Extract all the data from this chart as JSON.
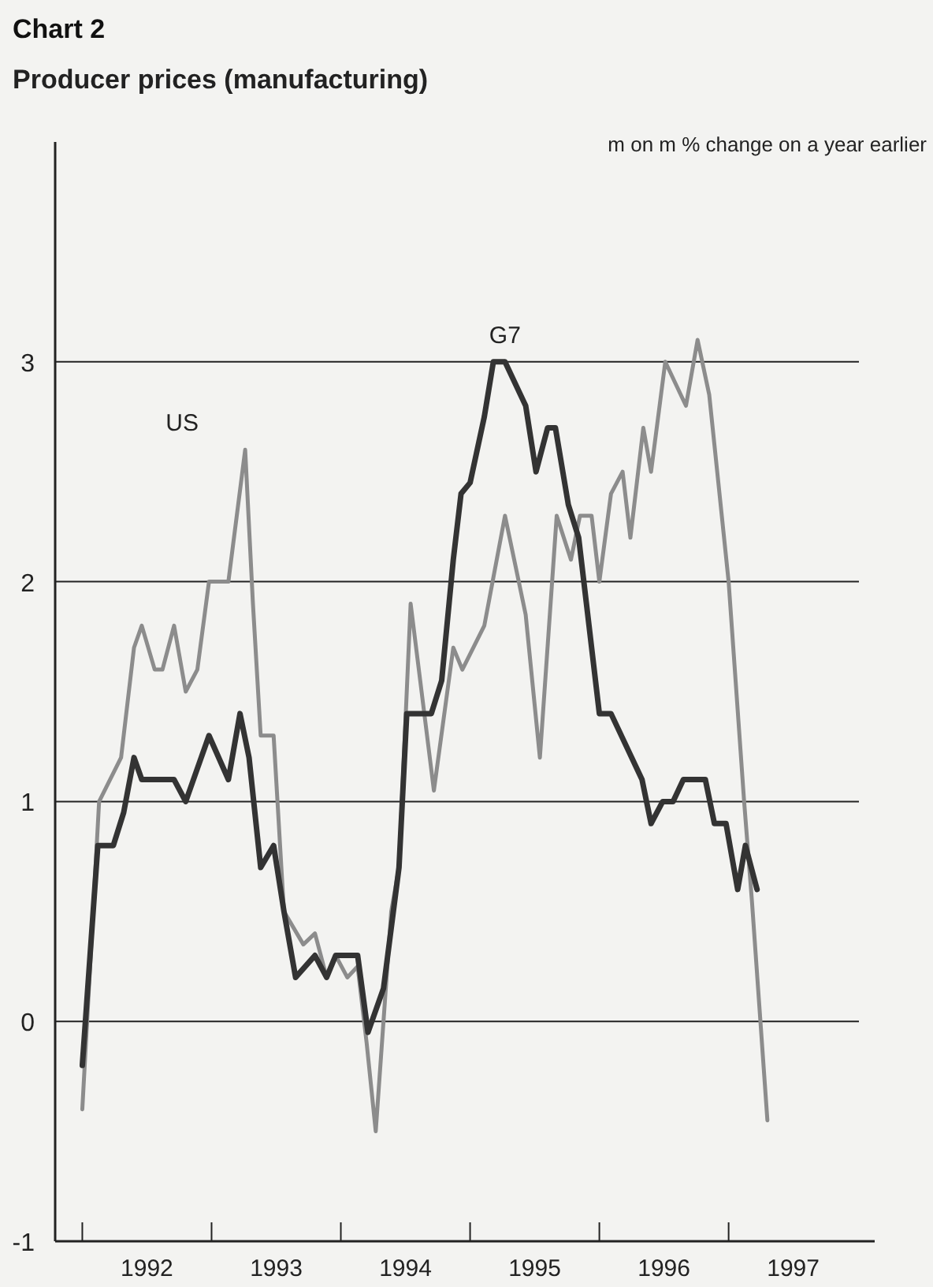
{
  "chart_data": {
    "type": "line",
    "title": "Chart 2",
    "subtitle": "Producer prices (manufacturing)",
    "ylabel": "m on m % change on a year earlier",
    "xlim": [
      1991.79,
      1998.13
    ],
    "xticks": [
      {
        "value": 1992,
        "label": null
      },
      {
        "value": 1993,
        "label": null
      },
      {
        "value": 1994,
        "label": null
      },
      {
        "value": 1995,
        "label": null
      },
      {
        "value": 1996,
        "label": null
      },
      {
        "value": 1997,
        "label": null
      },
      {
        "value": 1992.5,
        "label": "1992"
      },
      {
        "value": 1993.5,
        "label": "1993"
      },
      {
        "value": 1994.5,
        "label": "1994"
      },
      {
        "value": 1995.5,
        "label": "1995"
      },
      {
        "value": 1996.5,
        "label": "1996"
      },
      {
        "value": 1997.5,
        "label": "1997"
      }
    ],
    "ylim": [
      -1,
      4
    ],
    "yticks": [
      -1,
      0,
      1,
      2,
      3
    ],
    "grid": "y",
    "marker": "none",
    "line_style": "solid",
    "series": [
      {
        "name": "US",
        "color": "#8c8c8c",
        "x": [
          1992.0,
          1992.13,
          1992.3,
          1992.4,
          1992.46,
          1992.56,
          1992.62,
          1992.71,
          1992.8,
          1992.89,
          1992.98,
          1993.13,
          1993.26,
          1993.32,
          1993.38,
          1993.48,
          1993.56,
          1993.71,
          1993.8,
          1993.89,
          1993.96,
          1994.05,
          1994.13,
          1994.2,
          1994.27,
          1994.39,
          1994.45,
          1994.54,
          1994.72,
          1994.87,
          1994.94,
          1995.11,
          1995.27,
          1995.43,
          1995.54,
          1995.67,
          1995.78,
          1995.85,
          1995.94,
          1996.0,
          1996.09,
          1996.18,
          1996.24,
          1996.34,
          1996.4,
          1996.51,
          1996.67,
          1996.76,
          1996.85,
          1997.0,
          1997.12,
          1997.18,
          1997.3
        ],
        "values": [
          -0.4,
          1.0,
          1.2,
          1.7,
          1.8,
          1.6,
          1.6,
          1.8,
          1.5,
          1.6,
          2.0,
          2.0,
          2.6,
          1.9,
          1.3,
          1.3,
          0.5,
          0.35,
          0.4,
          0.2,
          0.3,
          0.2,
          0.25,
          -0.1,
          -0.5,
          0.5,
          0.7,
          1.9,
          1.05,
          1.7,
          1.6,
          1.8,
          2.3,
          1.85,
          1.2,
          2.3,
          2.1,
          2.3,
          2.3,
          2.0,
          2.4,
          2.5,
          2.2,
          2.7,
          2.5,
          3.0,
          2.8,
          3.1,
          2.85,
          2.0,
          1.0,
          0.55,
          -0.45
        ]
      },
      {
        "name": "G7",
        "color": "#333333",
        "x": [
          1992.0,
          1992.12,
          1992.24,
          1992.32,
          1992.4,
          1992.46,
          1992.71,
          1992.8,
          1992.98,
          1993.13,
          1993.22,
          1993.29,
          1993.38,
          1993.48,
          1993.56,
          1993.65,
          1993.8,
          1993.89,
          1993.96,
          1994.13,
          1994.21,
          1994.33,
          1994.45,
          1994.51,
          1994.7,
          1994.78,
          1994.87,
          1994.93,
          1995.0,
          1995.11,
          1995.18,
          1995.27,
          1995.43,
          1995.51,
          1995.6,
          1995.66,
          1995.76,
          1995.84,
          1996.0,
          1996.09,
          1996.33,
          1996.4,
          1996.49,
          1996.57,
          1996.65,
          1996.82,
          1996.89,
          1996.98,
          1997.07,
          1997.13,
          1997.22
        ],
        "values": [
          -0.2,
          0.8,
          0.8,
          0.95,
          1.2,
          1.1,
          1.1,
          1.0,
          1.3,
          1.1,
          1.4,
          1.2,
          0.7,
          0.8,
          0.5,
          0.2,
          0.3,
          0.2,
          0.3,
          0.3,
          -0.05,
          0.15,
          0.7,
          1.4,
          1.4,
          1.55,
          2.1,
          2.4,
          2.45,
          2.75,
          3.0,
          3.0,
          2.8,
          2.5,
          2.7,
          2.7,
          2.35,
          2.2,
          1.4,
          1.4,
          1.1,
          0.9,
          1.0,
          1.0,
          1.1,
          1.1,
          0.9,
          0.9,
          0.6,
          0.8,
          0.6
        ]
      }
    ]
  }
}
